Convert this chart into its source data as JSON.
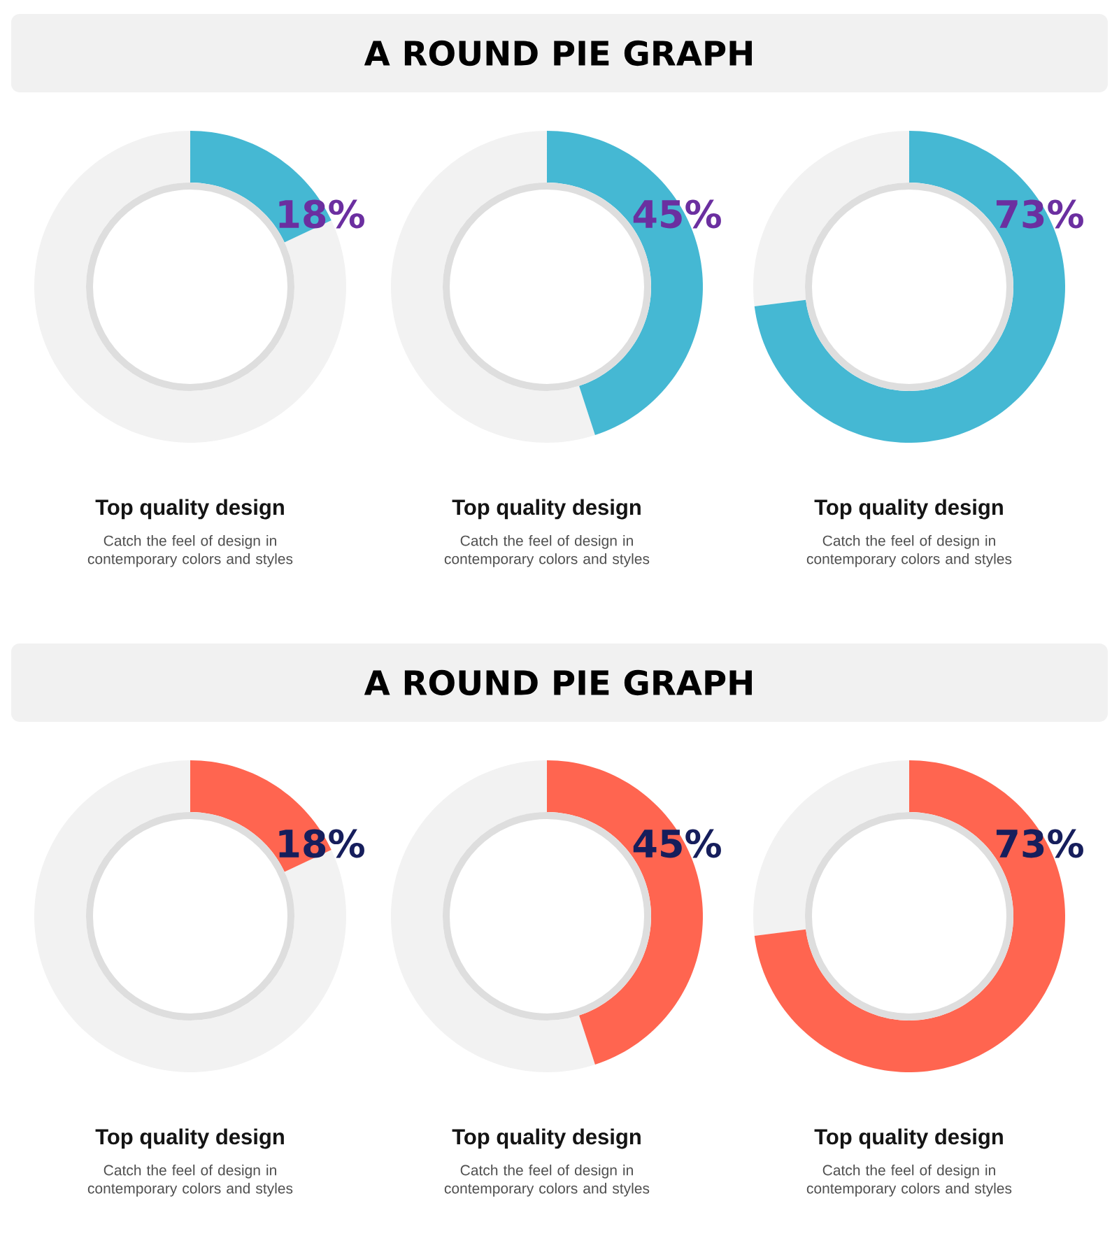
{
  "chart_data": [
    {
      "type": "donut",
      "categories": [
        null,
        null
      ],
      "values": [
        18,
        82
      ],
      "colors": [
        "#45b8d3",
        "#f2f2f2"
      ],
      "value_labels": [
        "18%",
        null
      ],
      "annotations": [
        "Top quality design",
        "Catch the feel of design in contemporary colors and styles"
      ]
    },
    {
      "type": "donut",
      "title": "A ROUND PIE GRAPH",
      "categories": [
        null,
        null
      ],
      "values": [
        45,
        55
      ],
      "colors": [
        "#45b8d3",
        "#f2f2f2"
      ],
      "value_labels": [
        "45%",
        null
      ],
      "annotations": [
        "Top quality design",
        "Catch the feel of design in contemporary colors and styles"
      ]
    },
    {
      "type": "donut",
      "categories": [
        null,
        null
      ],
      "values": [
        73,
        27
      ],
      "colors": [
        "#45b8d3",
        "#f2f2f2"
      ],
      "value_labels": [
        "73%",
        null
      ],
      "annotations": [
        "Top quality design",
        "Catch the feel of design in contemporary colors and styles"
      ]
    },
    {
      "type": "donut",
      "categories": [
        null,
        null
      ],
      "values": [
        18,
        82
      ],
      "colors": [
        "#ff6550",
        "#f2f2f2"
      ],
      "value_labels": [
        "18%",
        null
      ],
      "annotations": [
        "Top quality design",
        "Catch the feel of design in contemporary colors and styles"
      ]
    },
    {
      "type": "donut",
      "title": "A ROUND PIE GRAPH",
      "categories": [
        null,
        null
      ],
      "values": [
        45,
        55
      ],
      "colors": [
        "#ff6550",
        "#f2f2f2"
      ],
      "value_labels": [
        "45%",
        null
      ],
      "annotations": [
        "Top quality design",
        "Catch the feel of design in contemporary colors and styles"
      ]
    },
    {
      "type": "donut",
      "categories": [
        null,
        null
      ],
      "values": [
        73,
        27
      ],
      "colors": [
        "#ff6550",
        "#f2f2f2"
      ],
      "value_labels": [
        "73%",
        null
      ],
      "annotations": [
        "Top quality design",
        "Catch the feel of design in contemporary colors and styles"
      ]
    }
  ]
}
